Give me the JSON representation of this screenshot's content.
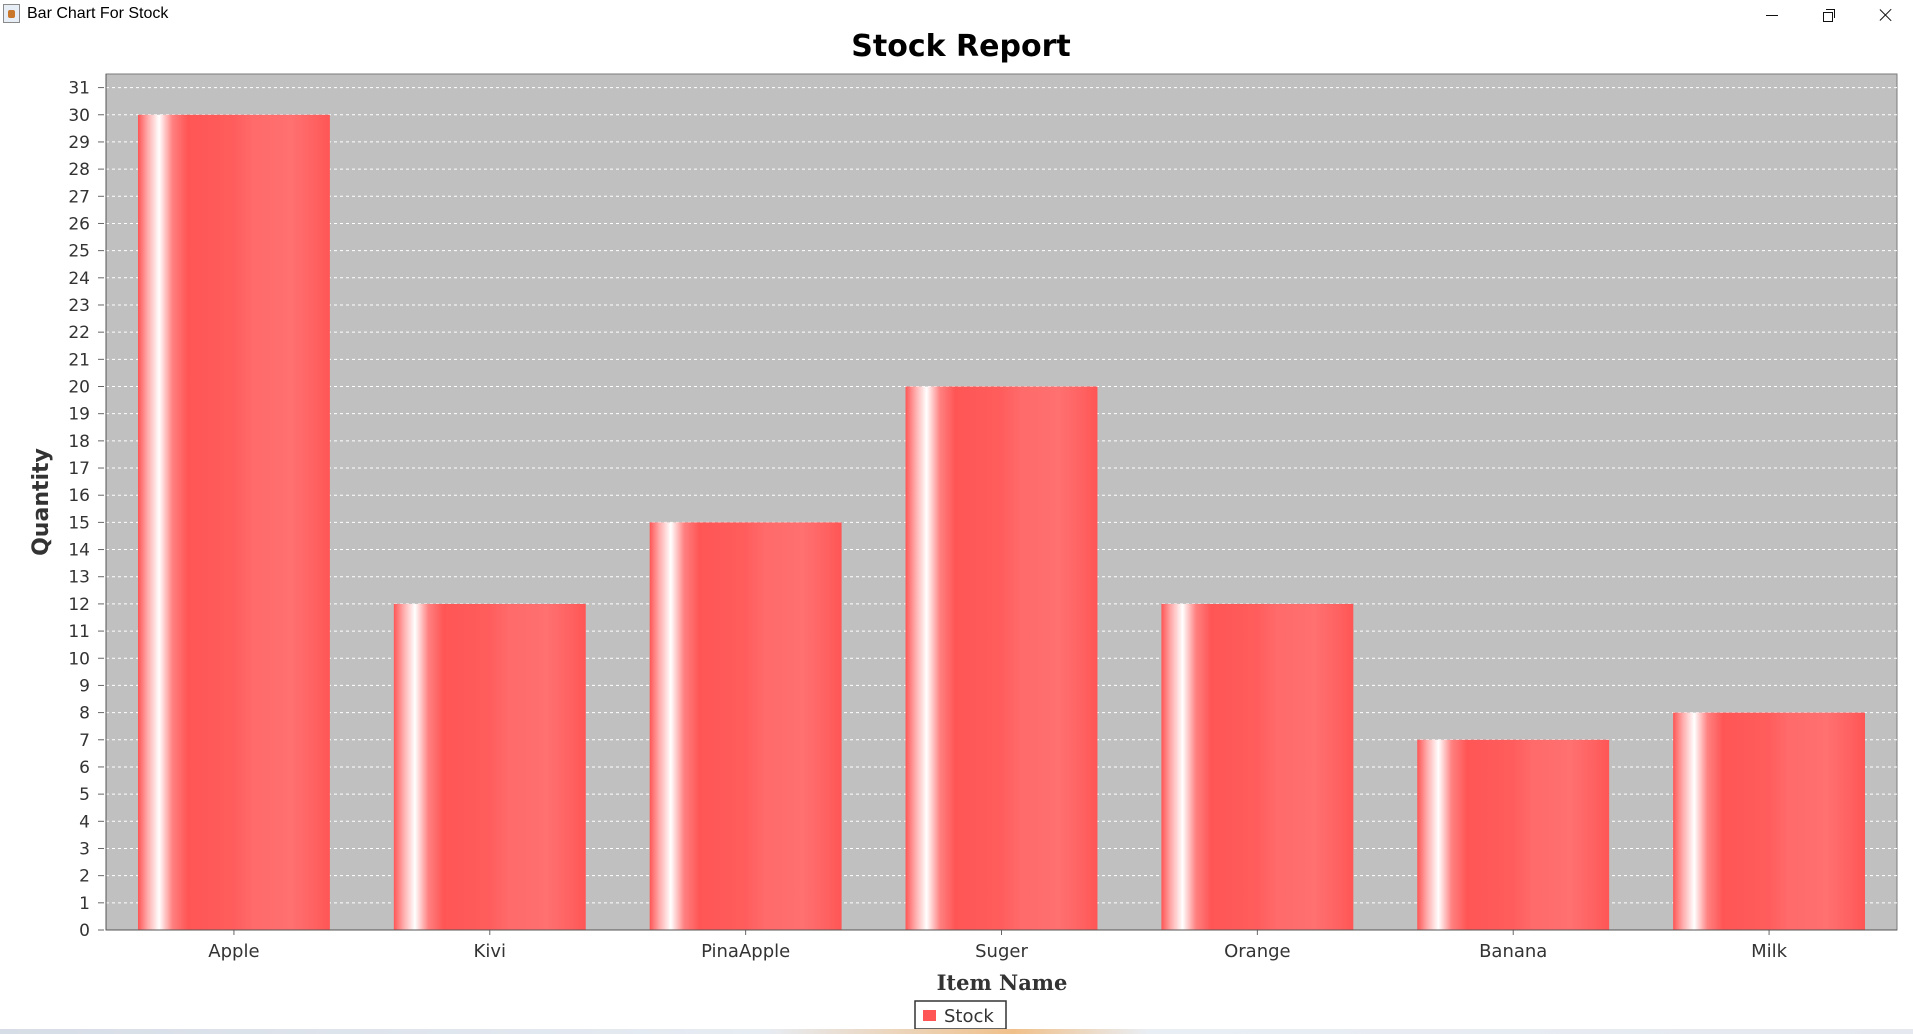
{
  "window": {
    "title": "Bar Chart For Stock",
    "controls": {
      "minimize_icon": "minimize-icon",
      "maximize_icon": "restore-icon",
      "close_icon": "close-icon"
    }
  },
  "chart_data": {
    "type": "bar",
    "title": "Stock Report",
    "xlabel": "Item Name",
    "ylabel": "Quantity",
    "categories": [
      "Apple",
      "Kivi",
      "PinaApple",
      "Suger",
      "Orange",
      "Banana",
      "Milk"
    ],
    "series": [
      {
        "name": "Stock",
        "values": [
          30,
          12,
          15,
          20,
          12,
          7,
          8
        ],
        "color": "#ff5555"
      }
    ],
    "ylim": [
      0,
      31.5
    ],
    "yticks": [
      0,
      1,
      2,
      3,
      4,
      5,
      6,
      7,
      8,
      9,
      10,
      11,
      12,
      13,
      14,
      15,
      16,
      17,
      18,
      19,
      20,
      21,
      22,
      23,
      24,
      25,
      26,
      27,
      28,
      29,
      30,
      31
    ],
    "grid": true,
    "grid_style": "dashed-white",
    "plot_background": "#c0c0c0",
    "legend_position": "bottom-center"
  }
}
